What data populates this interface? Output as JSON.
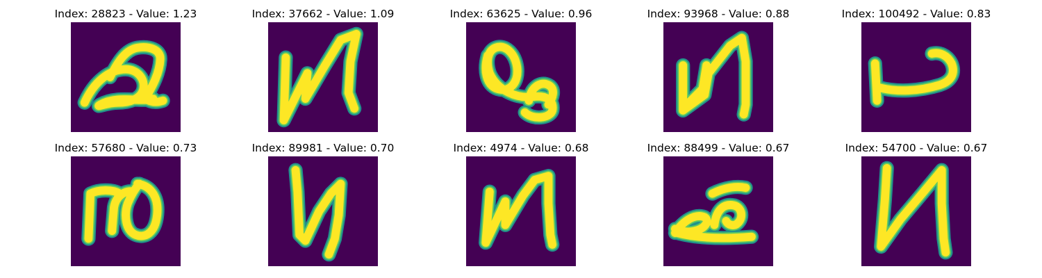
{
  "colormap": {
    "background": "#440154",
    "halo": "#21918c",
    "mid": "#5ec962",
    "core": "#fde725"
  },
  "panels": [
    {
      "title": "Index: 28823 - Value: 1.23",
      "glyph": "glyph-a-icon"
    },
    {
      "title": "Index: 37662 - Value: 1.09",
      "glyph": "glyph-n-icon"
    },
    {
      "title": "Index: 63625 - Value: 0.96",
      "glyph": "glyph-q-icon"
    },
    {
      "title": "Index: 93968 - Value: 0.88",
      "glyph": "glyph-n-bold-icon"
    },
    {
      "title": "Index: 100492 - Value: 0.83",
      "glyph": "glyph-l-icon"
    },
    {
      "title": "Index: 57680 - Value: 0.73",
      "glyph": "glyph-ro-icon"
    },
    {
      "title": "Index: 89981 - Value: 0.70",
      "glyph": "glyph-n-thin-icon"
    },
    {
      "title": "Index: 4974 - Value: 0.68",
      "glyph": "glyph-n-icon"
    },
    {
      "title": "Index: 88499 - Value: 0.67",
      "glyph": "glyph-e-icon"
    },
    {
      "title": "Index: 54700 - Value: 0.67",
      "glyph": "glyph-n-icon"
    }
  ]
}
